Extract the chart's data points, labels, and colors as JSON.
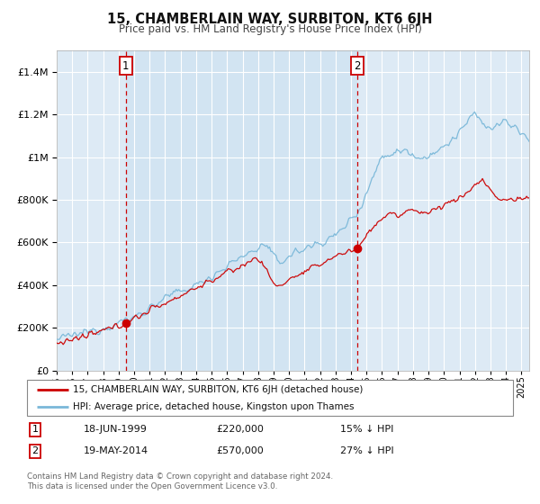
{
  "title": "15, CHAMBERLAIN WAY, SURBITON, KT6 6JH",
  "subtitle": "Price paid vs. HM Land Registry's House Price Index (HPI)",
  "legend_line1": "15, CHAMBERLAIN WAY, SURBITON, KT6 6JH (detached house)",
  "legend_line2": "HPI: Average price, detached house, Kingston upon Thames",
  "annotation1_date": "18-JUN-1999",
  "annotation1_price": "£220,000",
  "annotation1_hpi": "15% ↓ HPI",
  "annotation2_date": "19-MAY-2014",
  "annotation2_price": "£570,000",
  "annotation2_hpi": "27% ↓ HPI",
  "footnote1": "Contains HM Land Registry data © Crown copyright and database right 2024.",
  "footnote2": "This data is licensed under the Open Government Licence v3.0.",
  "sale1_year": 1999.46,
  "sale1_value": 220000,
  "sale2_year": 2014.38,
  "sale2_value": 570000,
  "hpi_color": "#7ab8d9",
  "price_color": "#cc0000",
  "background_color": "#ddeaf5",
  "shaded_color": "#c8dff0",
  "annotation_vline_color": "#cc0000",
  "grid_color": "#cccccc",
  "ylim_max": 1500000,
  "ylim_min": 0,
  "xlim_min": 1995,
  "xlim_max": 2025.5
}
